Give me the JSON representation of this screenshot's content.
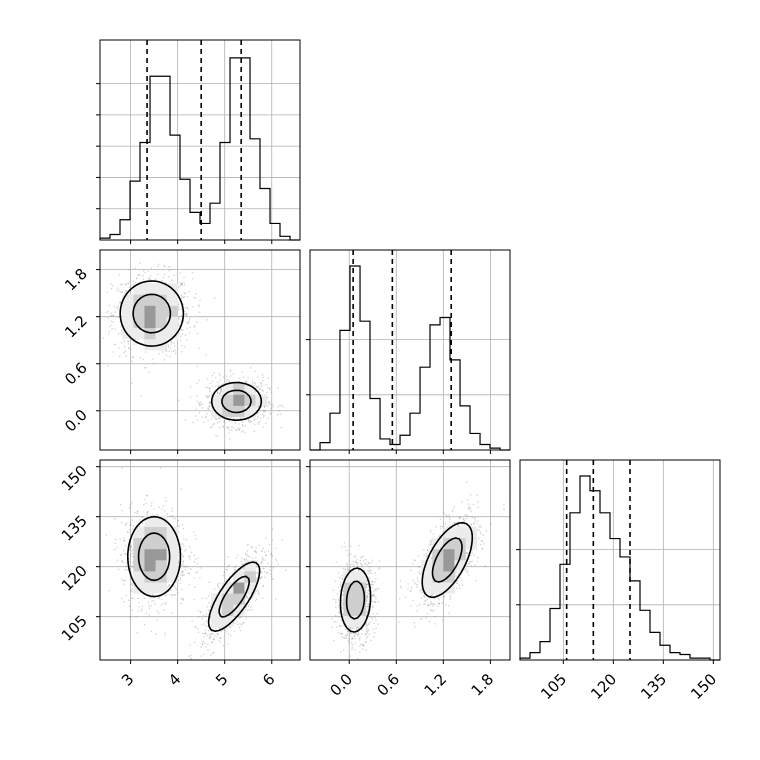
{
  "chart_data": {
    "type": "corner",
    "grid": true,
    "parameters": [
      {
        "ticks": [
          3,
          4,
          5,
          6
        ],
        "range": [
          2.35,
          6.6
        ],
        "histogram": {
          "bin_edges": [
            2.35,
            2.563,
            2.775,
            2.988,
            3.2,
            3.413,
            3.625,
            3.838,
            4.05,
            4.263,
            4.475,
            4.688,
            4.9,
            5.113,
            5.325,
            5.538,
            5.75,
            5.963,
            6.175,
            6.388,
            6.6
          ],
          "counts": [
            0.01,
            0.03,
            0.11,
            0.32,
            0.53,
            0.89,
            0.89,
            0.57,
            0.33,
            0.15,
            0.09,
            0.2,
            0.53,
            0.99,
            0.99,
            0.55,
            0.28,
            0.09,
            0.02,
            0.0
          ]
        },
        "quantiles": [
          3.35,
          4.5,
          5.35
        ]
      },
      {
        "ticks": [
          0.0,
          0.6,
          1.2,
          1.8
        ],
        "tick_labels": [
          "0.0",
          "0.6",
          "1.2",
          "1.8"
        ],
        "range": [
          -0.5,
          2.05
        ],
        "histogram": {
          "bin_edges": [
            -0.5,
            -0.372,
            -0.245,
            -0.118,
            0.01,
            0.138,
            0.265,
            0.393,
            0.52,
            0.648,
            0.775,
            0.903,
            1.03,
            1.158,
            1.285,
            1.413,
            1.54,
            1.668,
            1.795,
            1.923,
            2.05
          ],
          "counts": [
            0.0,
            0.04,
            0.2,
            0.65,
            1.0,
            0.7,
            0.28,
            0.06,
            0.03,
            0.08,
            0.2,
            0.45,
            0.68,
            0.72,
            0.49,
            0.24,
            0.09,
            0.03,
            0.01,
            0.0
          ]
        },
        "quantiles": [
          0.05,
          0.55,
          1.3
        ]
      },
      {
        "ticks": [
          105,
          120,
          135,
          150
        ],
        "range": [
          92,
          152
        ],
        "histogram": {
          "bin_edges": [
            92,
            95,
            98,
            101,
            104,
            107,
            110,
            113,
            116,
            119,
            122,
            125,
            128,
            131,
            134,
            137,
            140,
            143,
            146,
            149,
            152
          ],
          "counts": [
            0.01,
            0.04,
            0.1,
            0.28,
            0.52,
            0.8,
            1.0,
            0.92,
            0.8,
            0.66,
            0.56,
            0.43,
            0.27,
            0.15,
            0.08,
            0.04,
            0.03,
            0.01,
            0.01,
            0.0
          ]
        },
        "quantiles": [
          106,
          114,
          125
        ]
      }
    ],
    "pairs": [
      {
        "row": 1,
        "col": 0,
        "blobs": [
          {
            "center": [
              3.45,
              1.24
            ],
            "sigma": [
              0.42,
              0.26
            ],
            "corr": 0.0,
            "weight": 0.5
          },
          {
            "center": [
              5.25,
              0.12
            ],
            "sigma": [
              0.33,
              0.15
            ],
            "corr": 0.0,
            "weight": 0.5
          }
        ]
      },
      {
        "row": 2,
        "col": 0,
        "blobs": [
          {
            "center": [
              3.5,
              123
            ],
            "sigma": [
              0.35,
              7.5
            ],
            "corr": 0.0,
            "weight": 0.5
          },
          {
            "center": [
              5.2,
              111
            ],
            "sigma": [
              0.34,
              6.5
            ],
            "corr": 0.75,
            "weight": 0.5
          }
        ]
      },
      {
        "row": 2,
        "col": 1,
        "blobs": [
          {
            "center": [
              0.08,
              110
            ],
            "sigma": [
              0.12,
              6.0
            ],
            "corr": 0.1,
            "weight": 0.5
          },
          {
            "center": [
              1.25,
              122
            ],
            "sigma": [
              0.2,
              7.0
            ],
            "corr": 0.6,
            "weight": 0.5
          }
        ]
      }
    ]
  }
}
